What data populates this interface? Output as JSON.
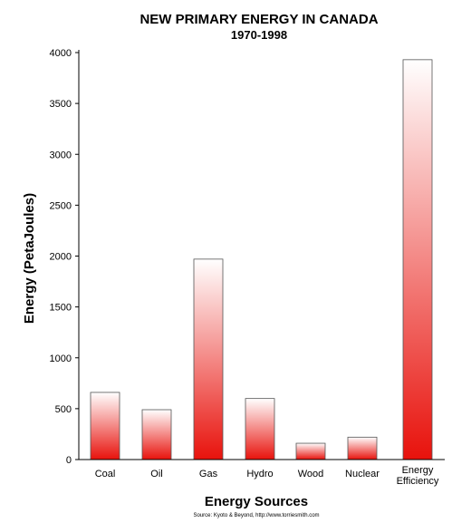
{
  "chart_data": {
    "type": "bar",
    "title": "NEW PRIMARY ENERGY IN CANADA",
    "subtitle": "1970-1998",
    "xlabel": "Energy Sources",
    "ylabel": "Energy (PetaJoules)",
    "categories": [
      "Coal",
      "Oil",
      "Gas",
      "Hydro",
      "Wood",
      "Nuclear",
      "Energy Efficiency"
    ],
    "values": [
      660,
      490,
      1970,
      600,
      160,
      220,
      3930
    ],
    "ylim": [
      0,
      4000
    ],
    "yticks": [
      0,
      500,
      1000,
      1500,
      2000,
      2500,
      3000,
      3500,
      4000
    ],
    "grid": false,
    "bar_color_top": "#ffffff",
    "bar_color_bottom": "#e8120c",
    "source": "Source: Kyoto & Beyond, http://www.torriesmith.com"
  }
}
